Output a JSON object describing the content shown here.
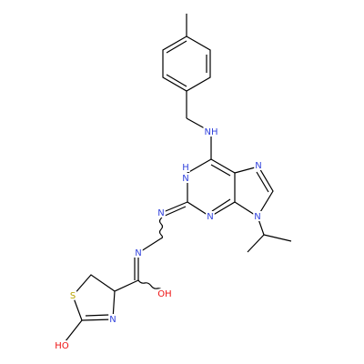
{
  "atom_labels": [
    "NH",
    "N",
    "H",
    "N",
    "N",
    "N",
    "N",
    "N",
    "OH",
    "S",
    "N",
    "HO"
  ]
}
